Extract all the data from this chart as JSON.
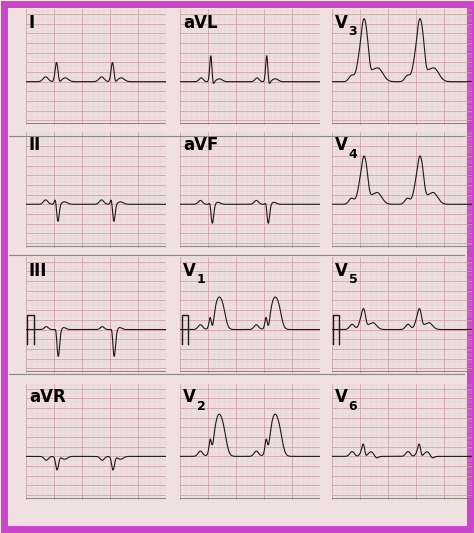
{
  "bg_color": "#f0e0e0",
  "grid_major_color": "#c8a0a0",
  "grid_minor_color": "#e0c8c8",
  "ecg_color": "#1a1a1a",
  "border_color": "#cc44cc",
  "label_color": "#000000",
  "label_fontsize": 12,
  "sub_fontsize": 9,
  "layout_rows": [
    [
      "I",
      "aVL",
      "V3"
    ],
    [
      "II",
      "aVF",
      "V4"
    ],
    [
      "III",
      "V1",
      "V5"
    ],
    [
      "aVR",
      "V2",
      "V6"
    ]
  ],
  "cal_row": 2,
  "n_points": 500,
  "xlim": [
    0,
    1
  ],
  "ylim": [
    -0.45,
    0.75
  ]
}
